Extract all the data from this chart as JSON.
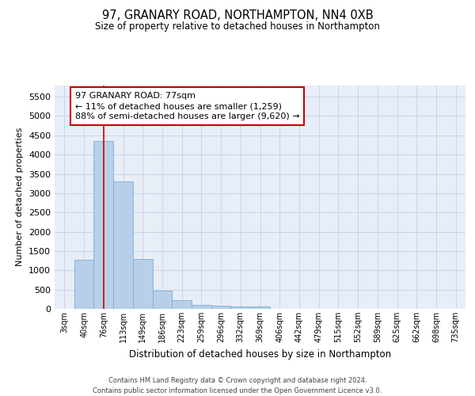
{
  "title_line1": "97, GRANARY ROAD, NORTHAMPTON, NN4 0XB",
  "title_line2": "Size of property relative to detached houses in Northampton",
  "xlabel": "Distribution of detached houses by size in Northampton",
  "ylabel": "Number of detached properties",
  "footnote": "Contains HM Land Registry data © Crown copyright and database right 2024.\nContains public sector information licensed under the Open Government Licence v3.0.",
  "bar_labels": [
    "3sqm",
    "40sqm",
    "76sqm",
    "113sqm",
    "149sqm",
    "186sqm",
    "223sqm",
    "259sqm",
    "296sqm",
    "332sqm",
    "369sqm",
    "406sqm",
    "442sqm",
    "479sqm",
    "515sqm",
    "552sqm",
    "589sqm",
    "625sqm",
    "662sqm",
    "698sqm",
    "735sqm"
  ],
  "bar_values": [
    0,
    1280,
    4350,
    3300,
    1290,
    480,
    230,
    100,
    80,
    55,
    60,
    0,
    0,
    0,
    0,
    0,
    0,
    0,
    0,
    0,
    0
  ],
  "bar_color": "#b8cfe8",
  "bar_edge_color": "#7bafd4",
  "property_line_x": 2,
  "annotation_text": "97 GRANARY ROAD: 77sqm\n← 11% of detached houses are smaller (1,259)\n88% of semi-detached houses are larger (9,620) →",
  "ylim": [
    0,
    5800
  ],
  "yticks": [
    0,
    500,
    1000,
    1500,
    2000,
    2500,
    3000,
    3500,
    4000,
    4500,
    5000,
    5500
  ],
  "grid_color": "#c8d4e8",
  "background_color": "#e8eef8",
  "annotation_box_color": "white",
  "annotation_box_edge": "#cc0000",
  "line_color": "#cc0000",
  "fig_background": "#ffffff",
  "title1_fontsize": 10.5,
  "title2_fontsize": 8.5,
  "ylabel_fontsize": 8,
  "xlabel_fontsize": 8.5,
  "ytick_fontsize": 8,
  "xtick_fontsize": 7,
  "annot_fontsize": 8,
  "footer_fontsize": 6
}
